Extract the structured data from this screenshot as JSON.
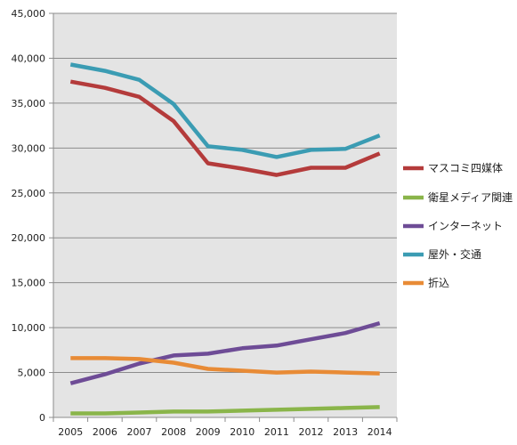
{
  "chart_data": {
    "type": "line",
    "categories": [
      "2005",
      "2006",
      "2007",
      "2008",
      "2009",
      "2010",
      "2011",
      "2012",
      "2013",
      "2014"
    ],
    "ylim": [
      0,
      45000
    ],
    "y_ticks": [
      0,
      5000,
      10000,
      15000,
      20000,
      25000,
      30000,
      35000,
      40000,
      45000
    ],
    "y_tick_labels": [
      "0",
      "5,000",
      "10,000",
      "15,000",
      "20,000",
      "25,000",
      "30,000",
      "35,000",
      "40,000",
      "45,000"
    ],
    "grid": true,
    "legend_position": "right",
    "plot_background": "#e4e4e4",
    "series": [
      {
        "name": "マスコミ四媒体",
        "color": "#b43b3b",
        "values": [
          37400,
          36700,
          35700,
          33000,
          28300,
          27700,
          27000,
          27800,
          27800,
          29400
        ]
      },
      {
        "name": "衛星メディア関連",
        "color": "#8ab54a",
        "values": [
          450,
          450,
          550,
          650,
          650,
          750,
          850,
          950,
          1050,
          1150
        ]
      },
      {
        "name": "インターネット",
        "color": "#6e4c96",
        "values": [
          3800,
          4800,
          6000,
          6900,
          7100,
          7700,
          8000,
          8700,
          9400,
          10500
        ]
      },
      {
        "name": "屋外・交通",
        "color": "#3b9cb3",
        "values": [
          39300,
          38600,
          37600,
          34900,
          30200,
          29800,
          29000,
          29800,
          29900,
          31400
        ]
      },
      {
        "name": "折込",
        "color": "#e88b36",
        "values": [
          6600,
          6600,
          6500,
          6100,
          5400,
          5200,
          5000,
          5100,
          5000,
          4900
        ]
      }
    ]
  }
}
